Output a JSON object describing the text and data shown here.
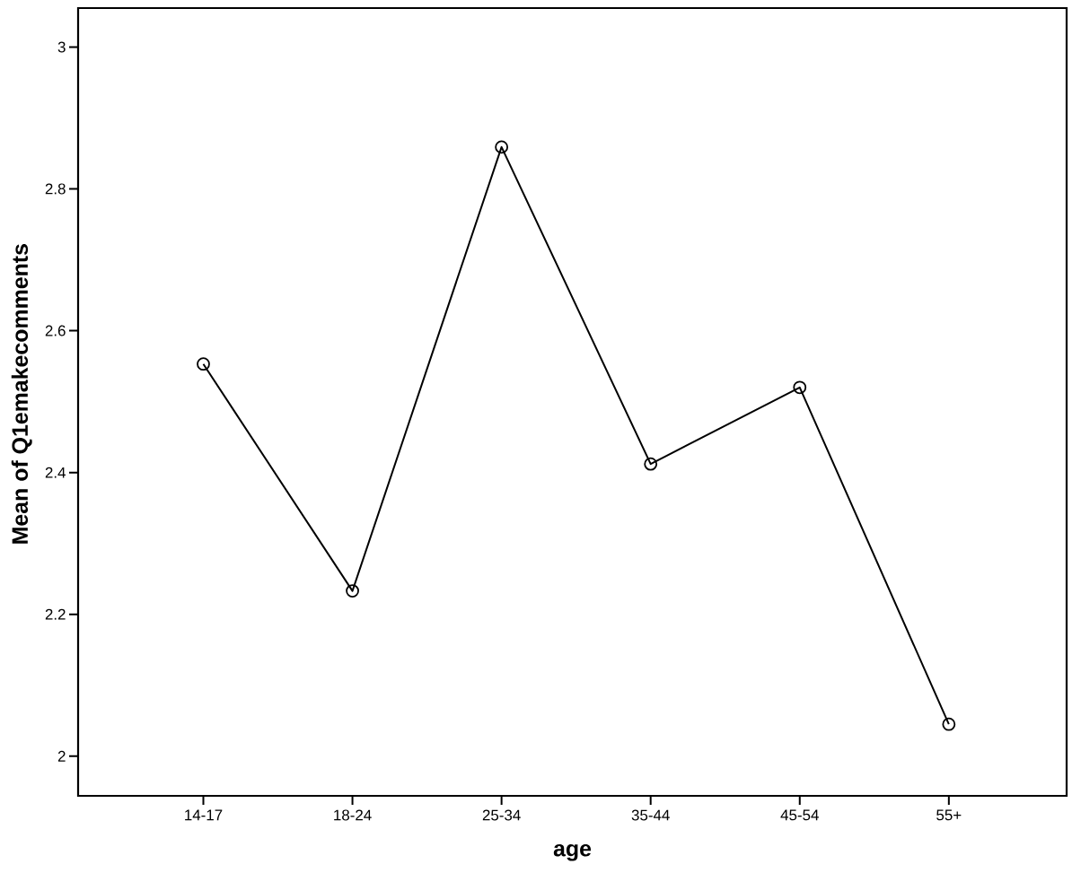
{
  "chart_data": {
    "type": "line",
    "xlabel": "age",
    "ylabel": "Mean of Q1emakecomments",
    "categories": [
      "14-17",
      "18-24",
      "25-34",
      "35-44",
      "45-54",
      "55+"
    ],
    "series": [
      {
        "color": "#000000",
        "values": [
          2.553,
          2.233,
          2.859,
          2.412,
          2.52,
          2.045
        ]
      }
    ],
    "ylim": [
      1.944,
      3.055
    ],
    "yticks": [
      2,
      2.2,
      2.4,
      2.6,
      2.8,
      3
    ],
    "marker": "circle",
    "line_style": "solid",
    "grid": false,
    "legend": false
  }
}
